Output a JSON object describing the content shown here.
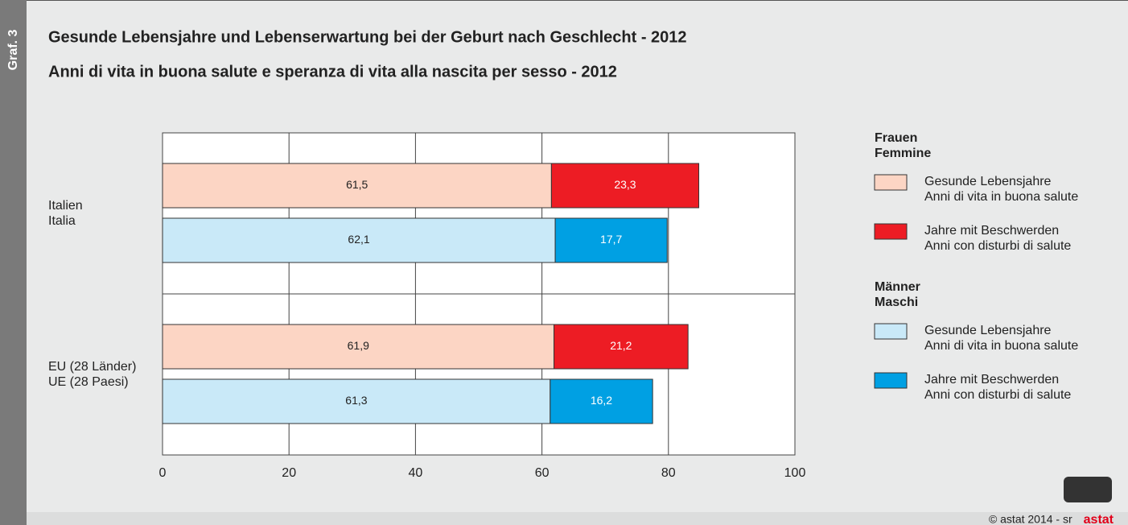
{
  "chart_data": {
    "type": "bar",
    "orientation": "horizontal",
    "stacked": true,
    "side_label": "Graf. 3",
    "title": "Gesunde Lebensjahre und Lebenserwartung bei der Geburt nach Geschlecht - 2012",
    "subtitle": "Anni di vita in buona salute e speranza di vita alla nascita per sesso - 2012",
    "categories": [
      [
        "Italien",
        "Italia"
      ],
      [
        "EU (28 Länder)",
        "UE (28 Paesi)"
      ]
    ],
    "groups": [
      {
        "name": [
          "Frauen",
          "Femmine"
        ],
        "series": [
          {
            "name": [
              "Gesunde Lebensjahre",
              "Anni di vita in buona salute"
            ],
            "color": "#fcd5c4",
            "label_color": "#222222",
            "values": [
              61.5,
              61.9
            ],
            "value_labels": [
              "61,5",
              "61,9"
            ]
          },
          {
            "name": [
              "Jahre mit Beschwerden",
              "Anni con disturbi di salute"
            ],
            "color": "#ed1c24",
            "label_color": "#ffffff",
            "values": [
              23.3,
              21.2
            ],
            "value_labels": [
              "23,3",
              "21,2"
            ]
          }
        ]
      },
      {
        "name": [
          "Männer",
          "Maschi"
        ],
        "series": [
          {
            "name": [
              "Gesunde Lebensjahre",
              "Anni di vita in buona salute"
            ],
            "color": "#c9e9f8",
            "label_color": "#222222",
            "values": [
              62.1,
              61.3
            ],
            "value_labels": [
              "62,1",
              "61,3"
            ]
          },
          {
            "name": [
              "Jahre mit Beschwerden",
              "Anni con disturbi di salute"
            ],
            "color": "#00a0e3",
            "label_color": "#ffffff",
            "values": [
              17.7,
              16.2
            ],
            "value_labels": [
              "17,7",
              "16,2"
            ]
          }
        ]
      }
    ],
    "xlim": [
      0,
      100
    ],
    "xticks": [
      0,
      20,
      40,
      60,
      80,
      100
    ],
    "grid": true,
    "source": "© astat 2014 - sr",
    "logo": "astat"
  }
}
